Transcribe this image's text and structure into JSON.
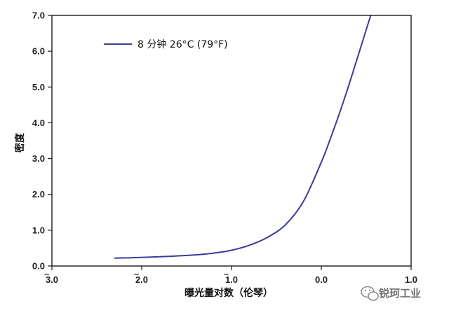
{
  "chart_data": {
    "type": "line",
    "ylabel": "密度",
    "xlabel": "曝光量对数（伦琴）",
    "x_tick_labels": [
      "3.0",
      "2.0",
      "1.0",
      "0.0",
      "1.0"
    ],
    "x_ticks": [
      -3,
      -2,
      -1,
      0,
      1
    ],
    "x_tick_bar": [
      true,
      true,
      true,
      false,
      false
    ],
    "xlim": [
      -3,
      1
    ],
    "y_tick_labels": [
      "0.0",
      "1.0",
      "2.0",
      "3.0",
      "4.0",
      "5.0",
      "6.0",
      "7.0"
    ],
    "y_ticks": [
      0,
      1,
      2,
      3,
      4,
      5,
      6,
      7
    ],
    "ylim": [
      0,
      7
    ],
    "grid": false,
    "legend_position": "top-left",
    "series": [
      {
        "name": "8 分钟 26°C (79°F)",
        "color": "#3b3b9a",
        "x": [
          -2.3,
          -2.0,
          -1.7,
          -1.4,
          -1.2,
          -1.0,
          -0.8,
          -0.6,
          -0.4,
          -0.2,
          0.0,
          0.1,
          0.2,
          0.3,
          0.4,
          0.5,
          0.55
        ],
        "y": [
          0.22,
          0.24,
          0.27,
          0.31,
          0.36,
          0.44,
          0.58,
          0.8,
          1.15,
          1.8,
          2.9,
          3.55,
          4.25,
          5.0,
          5.8,
          6.6,
          7.0
        ]
      }
    ]
  },
  "watermark": {
    "text": "锐珂工业",
    "icon": "wechat-icon"
  }
}
